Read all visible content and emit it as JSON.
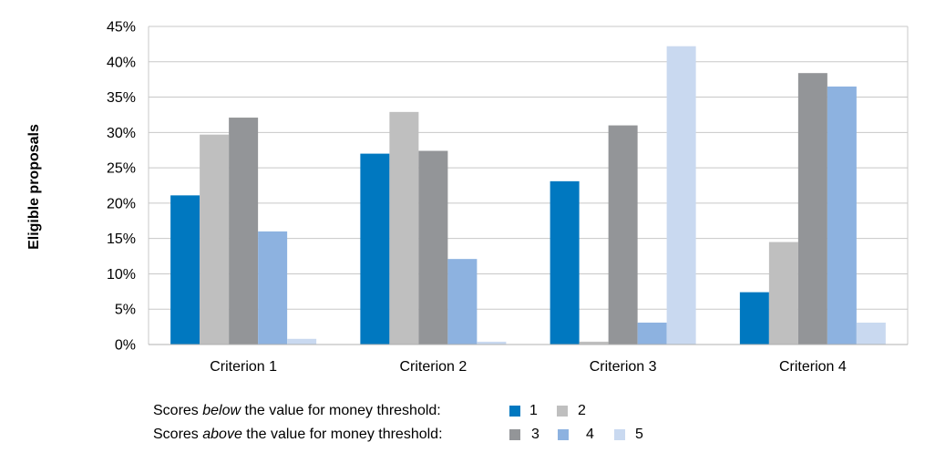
{
  "chart_data": {
    "type": "bar",
    "title": "",
    "xlabel": "",
    "ylabel": "Eligible proposals",
    "categories": [
      "Criterion 1",
      "Criterion 2",
      "Criterion 3",
      "Criterion 4"
    ],
    "series": [
      {
        "name": "1",
        "color": "#0078c0",
        "values": [
          21.1,
          27.0,
          23.1,
          7.4
        ]
      },
      {
        "name": "2",
        "color": "#bfbfbf",
        "values": [
          29.7,
          32.9,
          0.4,
          14.5
        ]
      },
      {
        "name": "3",
        "color": "#939598",
        "values": [
          32.1,
          27.4,
          31.0,
          38.4
        ]
      },
      {
        "name": "4",
        "color": "#8db2e0",
        "values": [
          16.0,
          12.1,
          3.1,
          36.5
        ]
      },
      {
        "name": "5",
        "color": "#c9d9f0",
        "values": [
          0.8,
          0.4,
          42.2,
          3.1
        ]
      }
    ],
    "ylim": [
      0,
      45
    ],
    "yticks": [
      "0%",
      "5%",
      "10%",
      "15%",
      "20%",
      "25%",
      "30%",
      "35%",
      "40%",
      "45%"
    ],
    "grid": true,
    "legend_position": "bottom"
  },
  "legend": {
    "below": {
      "prefix": "Scores ",
      "emph": "below",
      "suffix": " the value for money threshold:",
      "items": [
        "1",
        "2"
      ]
    },
    "above": {
      "prefix": "Scores ",
      "emph": "above",
      "suffix": " the value for money threshold:",
      "items": [
        "3",
        "4",
        "5"
      ]
    }
  }
}
